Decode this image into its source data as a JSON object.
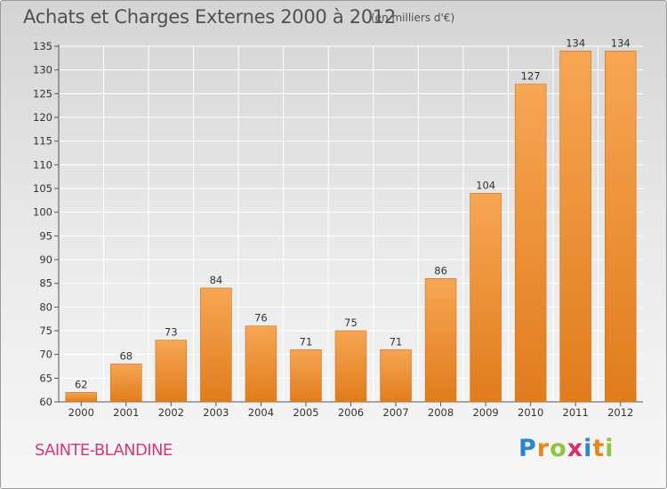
{
  "header": {
    "title": "Achats et Charges Externes 2000 à 2012",
    "unit": "(en milliers d'€)"
  },
  "footer": {
    "commune": "SAINTE-BLANDINE",
    "logo_letters": [
      "P",
      "r",
      "o",
      "x",
      "i",
      "t",
      "i"
    ],
    "logo_colors": [
      "#2e86d1",
      "#e8861c",
      "#8cc63f",
      "#d6306c",
      "#2e86d1",
      "#e8861c",
      "#8cc63f"
    ]
  },
  "chart_data": {
    "type": "bar",
    "title": "Achats et Charges Externes 2000 à 2012",
    "subtitle": "(en milliers d'€)",
    "categories": [
      "2000",
      "2001",
      "2002",
      "2003",
      "2004",
      "2005",
      "2006",
      "2007",
      "2008",
      "2009",
      "2010",
      "2011",
      "2012"
    ],
    "values": [
      62,
      68,
      73,
      84,
      76,
      71,
      75,
      71,
      86,
      104,
      127,
      134,
      134
    ],
    "ylim": [
      60,
      135
    ],
    "yticks": [
      60,
      65,
      70,
      75,
      80,
      85,
      90,
      95,
      100,
      105,
      110,
      115,
      120,
      125,
      130,
      135
    ],
    "grid": true,
    "bar_color_top": "#f7a654",
    "bar_color_bottom": "#e07c1c"
  }
}
